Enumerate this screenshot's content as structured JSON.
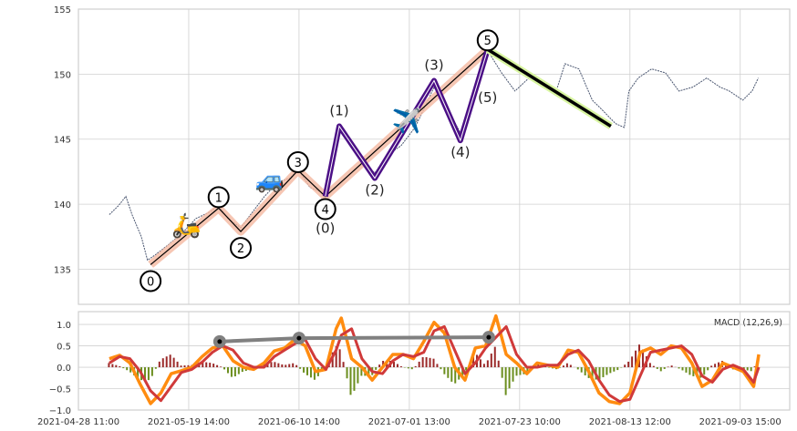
{
  "chart_data": [
    {
      "type": "line",
      "title": "",
      "x_unit": "days since 2021-04-28 11:00",
      "xlim": [
        0,
        138
      ],
      "ylim": [
        132.3,
        155
      ],
      "yticks": [
        135,
        140,
        145,
        150,
        155
      ],
      "xticks": [
        {
          "day": 0,
          "label": "2021-04-28 11:00"
        },
        {
          "day": 21.4,
          "label": "2021-05-19 14:00"
        },
        {
          "day": 42.8,
          "label": "2021-06-10 14:00"
        },
        {
          "day": 64.2,
          "label": "2021-07-01 13:00"
        },
        {
          "day": 85.6,
          "label": "2021-07-23 10:00"
        },
        {
          "day": 107,
          "label": "2021-08-13 12:00"
        },
        {
          "day": 128.4,
          "label": "2021-09-03 15:00"
        }
      ],
      "grid": true,
      "price": {
        "color": "#4a5670",
        "x": [
          6.0,
          7.8,
          9.2,
          10.4,
          12.2,
          13.4,
          14.9,
          17.5,
          20.2,
          22.8,
          25.5,
          27.2,
          29.0,
          31.5,
          33.4,
          36.1,
          38.7,
          41.0,
          42.6,
          44.9,
          46.7,
          47.9,
          49.3,
          50.6,
          52.9,
          55.5,
          57.5,
          60.0,
          62.6,
          65.3,
          67.0,
          69.0,
          71.5,
          74.1,
          76.8,
          79.4,
          82.1,
          84.7,
          87.4,
          90.0,
          92.7,
          94.4,
          97.1,
          99.7,
          101.5,
          104.2,
          105.9,
          106.8,
          108.6,
          111.2,
          113.9,
          116.5,
          119.2,
          121.9,
          124.5,
          126.3,
          128.9,
          130.7,
          131.9
        ],
        "y": [
          139.2,
          139.9,
          140.6,
          139.2,
          137.5,
          135.7,
          136.1,
          136.9,
          137.8,
          138.9,
          139.4,
          139.9,
          138.9,
          138.2,
          139.2,
          140.6,
          141.7,
          142.0,
          142.7,
          141.3,
          141.0,
          140.8,
          143.1,
          145.9,
          144.5,
          143.1,
          142.4,
          143.8,
          144.5,
          145.9,
          147.3,
          149.0,
          147.4,
          145.5,
          148.0,
          151.8,
          150.1,
          148.7,
          149.7,
          149.4,
          148.7,
          150.8,
          150.4,
          148.0,
          147.3,
          146.2,
          145.9,
          148.7,
          149.7,
          150.4,
          150.1,
          148.7,
          149.0,
          149.7,
          149.0,
          148.7,
          148.0,
          148.7,
          149.7
        ]
      },
      "primary_wave": {
        "halo_color": "#f4b8a0",
        "line_color": "#000000",
        "points": [
          {
            "label": "0",
            "x": 14.0,
            "y": 135.35
          },
          {
            "label": "1",
            "x": 27.2,
            "y": 139.7
          },
          {
            "label": "2",
            "x": 31.5,
            "y": 137.9
          },
          {
            "label": "3",
            "x": 42.6,
            "y": 142.6
          },
          {
            "label": "4",
            "x": 47.9,
            "y": 140.6
          },
          {
            "label": "5",
            "x": 79.4,
            "y": 151.9
          }
        ]
      },
      "sub_wave": {
        "color": "#4b0f86",
        "points": [
          {
            "label": "(0)",
            "x": 47.9,
            "y": 140.6
          },
          {
            "label": "(1)",
            "x": 50.6,
            "y": 146.0
          },
          {
            "label": "(2)",
            "x": 57.5,
            "y": 142.0
          },
          {
            "label": "(3)",
            "x": 69.0,
            "y": 149.5
          },
          {
            "label": "(4)",
            "x": 74.1,
            "y": 144.9
          },
          {
            "label": "(5)",
            "x": 79.4,
            "y": 151.9
          }
        ]
      },
      "correction_line": {
        "color": "#000000",
        "halo_color": "#d8f5a0",
        "points": [
          {
            "x": 79.4,
            "y": 151.9
          },
          {
            "x": 103.3,
            "y": 146.0
          }
        ]
      },
      "emoji_markers": [
        {
          "name": "scooter",
          "char": "🛵",
          "x": 20.9,
          "y": 138.4
        },
        {
          "name": "car",
          "char": "🚙",
          "x": 37.1,
          "y": 141.9
        },
        {
          "name": "airplane",
          "char": "✈️",
          "x": 63.7,
          "y": 146.4
        }
      ]
    },
    {
      "type": "line",
      "title": "MACD (12,26,9)",
      "ylim": [
        -1.0,
        1.3
      ],
      "yticks": [
        -1.0,
        -0.5,
        0.0,
        0.5,
        1.0
      ],
      "ytick_labels": [
        "−1.0",
        "−0.5",
        "0.0",
        "0.5",
        "1.0"
      ],
      "x": [
        6,
        8,
        10,
        12,
        14,
        16,
        18,
        20,
        22,
        24,
        26,
        28,
        30,
        32,
        34,
        36,
        38,
        40,
        42,
        44,
        46,
        48,
        50,
        51,
        53,
        55,
        57,
        59,
        61,
        63,
        65,
        67,
        69,
        71,
        73,
        75,
        77,
        79,
        81,
        83,
        85,
        87,
        89,
        91,
        93,
        95,
        97,
        99,
        101,
        103,
        105,
        107,
        109,
        111,
        113,
        115,
        117,
        119,
        121,
        123,
        125,
        127,
        129,
        131,
        132
      ],
      "macd": {
        "color": "#ff8c10",
        "values": [
          0.2,
          0.28,
          0.1,
          -0.4,
          -0.85,
          -0.6,
          -0.15,
          -0.08,
          0.0,
          0.25,
          0.45,
          0.5,
          0.15,
          0.0,
          -0.05,
          0.1,
          0.38,
          0.45,
          0.65,
          0.5,
          -0.1,
          -0.05,
          0.9,
          1.15,
          0.2,
          0.0,
          -0.3,
          0.0,
          0.3,
          0.3,
          0.2,
          0.6,
          1.05,
          0.8,
          0.0,
          -0.3,
          0.45,
          0.5,
          1.2,
          0.3,
          0.1,
          -0.15,
          0.1,
          0.05,
          0.0,
          0.4,
          0.35,
          -0.1,
          -0.6,
          -0.8,
          -0.85,
          -0.6,
          0.35,
          0.45,
          0.3,
          0.5,
          0.45,
          0.1,
          -0.45,
          -0.3,
          0.1,
          0.0,
          -0.1,
          -0.45,
          0.3
        ]
      },
      "signal": {
        "color": "#d03a3a",
        "values": [
          0.1,
          0.25,
          0.2,
          -0.1,
          -0.55,
          -0.78,
          -0.45,
          -0.12,
          -0.05,
          0.12,
          0.35,
          0.5,
          0.4,
          0.1,
          0.0,
          0.0,
          0.25,
          0.4,
          0.55,
          0.65,
          0.2,
          -0.05,
          0.4,
          0.75,
          0.9,
          0.2,
          -0.1,
          -0.15,
          0.15,
          0.3,
          0.25,
          0.35,
          0.85,
          0.95,
          0.4,
          -0.15,
          0.1,
          0.45,
          0.7,
          0.95,
          0.3,
          0.0,
          0.0,
          0.05,
          0.05,
          0.3,
          0.4,
          0.15,
          -0.3,
          -0.65,
          -0.8,
          -0.75,
          -0.2,
          0.35,
          0.4,
          0.45,
          0.5,
          0.3,
          -0.2,
          -0.35,
          -0.05,
          0.05,
          -0.05,
          -0.35,
          0.0
        ]
      },
      "histogram": {
        "pos_color": "#9b2a2a",
        "neg_color": "#6b8e1e",
        "definition": "macd - signal"
      },
      "divergence_line": {
        "color": "#808080",
        "points": [
          {
            "x": 27.4,
            "y": 0.6
          },
          {
            "x": 42.8,
            "y": 0.68
          },
          {
            "x": 79.6,
            "y": 0.7
          }
        ]
      }
    }
  ]
}
